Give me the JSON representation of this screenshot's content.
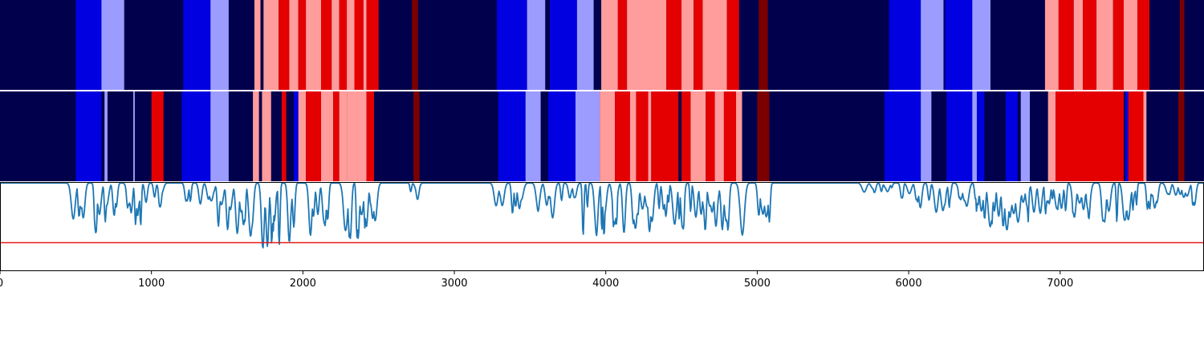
{
  "chart_data": {
    "type": "area",
    "title": "",
    "xlabel": "",
    "ylabel": "",
    "xlim": [
      0,
      7950
    ],
    "x_ticks": [
      {
        "value": 0,
        "label": "0"
      },
      {
        "value": 1000,
        "label": "1000"
      },
      {
        "value": 2000,
        "label": "2000"
      },
      {
        "value": 3000,
        "label": "3000"
      },
      {
        "value": 4000,
        "label": "4000"
      },
      {
        "value": 5000,
        "label": "5000"
      },
      {
        "value": 6000,
        "label": "6000"
      },
      {
        "value": 7000,
        "label": "7000"
      }
    ],
    "state_colors": {
      "bg": "#00004c",
      "blue": "#0000e0",
      "lightblue": "#9c9cff",
      "lightred": "#ff9c9c",
      "red": "#e40000",
      "darkred": "#7a0000"
    },
    "tracks": [
      {
        "segments": [
          [
            500,
            670,
            "blue"
          ],
          [
            670,
            820,
            "lightblue"
          ],
          [
            1210,
            1390,
            "blue"
          ],
          [
            1390,
            1510,
            "lightblue"
          ],
          [
            1680,
            1720,
            "lightred"
          ],
          [
            1740,
            1840,
            "lightred"
          ],
          [
            1840,
            1910,
            "red"
          ],
          [
            1910,
            1970,
            "lightred"
          ],
          [
            1970,
            2020,
            "red"
          ],
          [
            2020,
            2120,
            "lightred"
          ],
          [
            2120,
            2190,
            "red"
          ],
          [
            2190,
            2240,
            "lightred"
          ],
          [
            2240,
            2290,
            "red"
          ],
          [
            2290,
            2340,
            "lightred"
          ],
          [
            2340,
            2400,
            "red"
          ],
          [
            2400,
            2420,
            "lightred"
          ],
          [
            2420,
            2500,
            "red"
          ],
          [
            2720,
            2760,
            "darkred"
          ],
          [
            3280,
            3480,
            "blue"
          ],
          [
            3480,
            3600,
            "lightblue"
          ],
          [
            3630,
            3810,
            "blue"
          ],
          [
            3810,
            3920,
            "lightblue"
          ],
          [
            3970,
            4080,
            "lightred"
          ],
          [
            4080,
            4140,
            "red"
          ],
          [
            4140,
            4400,
            "lightred"
          ],
          [
            4400,
            4500,
            "red"
          ],
          [
            4500,
            4580,
            "lightred"
          ],
          [
            4580,
            4640,
            "red"
          ],
          [
            4640,
            4800,
            "lightred"
          ],
          [
            4800,
            4880,
            "red"
          ],
          [
            5010,
            5070,
            "darkred"
          ],
          [
            5870,
            6080,
            "blue"
          ],
          [
            6080,
            6230,
            "lightblue"
          ],
          [
            6240,
            6420,
            "blue"
          ],
          [
            6420,
            6540,
            "lightblue"
          ],
          [
            6900,
            6990,
            "lightred"
          ],
          [
            6990,
            7090,
            "red"
          ],
          [
            7090,
            7150,
            "lightred"
          ],
          [
            7150,
            7240,
            "red"
          ],
          [
            7240,
            7350,
            "lightred"
          ],
          [
            7350,
            7420,
            "red"
          ],
          [
            7420,
            7510,
            "lightred"
          ],
          [
            7510,
            7590,
            "red"
          ],
          [
            7790,
            7820,
            "darkred"
          ]
        ]
      },
      {
        "segments": [
          [
            500,
            670,
            "blue"
          ],
          [
            690,
            710,
            "lightblue"
          ],
          [
            880,
            890,
            "lightblue"
          ],
          [
            1000,
            1080,
            "red"
          ],
          [
            1200,
            1390,
            "blue"
          ],
          [
            1390,
            1510,
            "lightblue"
          ],
          [
            1670,
            1710,
            "lightred"
          ],
          [
            1730,
            1790,
            "lightred"
          ],
          [
            1860,
            1890,
            "red"
          ],
          [
            1940,
            1970,
            "blue"
          ],
          [
            1970,
            2020,
            "lightred"
          ],
          [
            2020,
            2120,
            "red"
          ],
          [
            2120,
            2200,
            "lightred"
          ],
          [
            2200,
            2240,
            "red"
          ],
          [
            2240,
            2290,
            "lightred"
          ],
          [
            2290,
            2420,
            "lightred"
          ],
          [
            2420,
            2470,
            "red"
          ],
          [
            2730,
            2770,
            "darkred"
          ],
          [
            3290,
            3470,
            "blue"
          ],
          [
            3470,
            3570,
            "lightblue"
          ],
          [
            3620,
            3800,
            "blue"
          ],
          [
            3800,
            3960,
            "lightblue"
          ],
          [
            3960,
            4060,
            "lightred"
          ],
          [
            4060,
            4160,
            "red"
          ],
          [
            4160,
            4200,
            "lightred"
          ],
          [
            4200,
            4280,
            "red"
          ],
          [
            4280,
            4300,
            "lightred"
          ],
          [
            4300,
            4480,
            "red"
          ],
          [
            4500,
            4560,
            "red"
          ],
          [
            4560,
            4660,
            "lightred"
          ],
          [
            4660,
            4720,
            "red"
          ],
          [
            4720,
            4780,
            "lightred"
          ],
          [
            4780,
            4860,
            "red"
          ],
          [
            4860,
            4900,
            "lightred"
          ],
          [
            5000,
            5080,
            "darkred"
          ],
          [
            5840,
            6080,
            "blue"
          ],
          [
            6080,
            6150,
            "lightblue"
          ],
          [
            6250,
            6420,
            "blue"
          ],
          [
            6420,
            6450,
            "lightblue"
          ],
          [
            6450,
            6500,
            "blue"
          ],
          [
            6640,
            6720,
            "blue"
          ],
          [
            6740,
            6800,
            "lightblue"
          ],
          [
            6920,
            6970,
            "lightred"
          ],
          [
            6970,
            7420,
            "red"
          ],
          [
            7430,
            7450,
            "blue"
          ],
          [
            7450,
            7550,
            "red"
          ],
          [
            7550,
            7570,
            "lightred"
          ],
          [
            7780,
            7820,
            "darkred"
          ]
        ]
      }
    ],
    "line_series": {
      "color": "#1f77b4",
      "ylim": [
        0,
        1
      ],
      "baseline": 0.99,
      "dips": [
        [
          470,
          550,
          0.5
        ],
        [
          600,
          720,
          0.6
        ],
        [
          720,
          870,
          0.4
        ],
        [
          870,
          970,
          0.6
        ],
        [
          1020,
          1100,
          0.3
        ],
        [
          1190,
          1260,
          0.3
        ],
        [
          1300,
          1420,
          0.3
        ],
        [
          1440,
          1700,
          0.6
        ],
        [
          1700,
          2000,
          0.75
        ],
        [
          2000,
          2200,
          0.6
        ],
        [
          2200,
          2480,
          0.65
        ],
        [
          2700,
          2760,
          0.2
        ],
        [
          3250,
          3330,
          0.3
        ],
        [
          3380,
          3480,
          0.4
        ],
        [
          3540,
          3650,
          0.45
        ],
        [
          3680,
          3800,
          0.25
        ],
        [
          3850,
          3960,
          0.6
        ],
        [
          3960,
          4200,
          0.6
        ],
        [
          4200,
          4350,
          0.7
        ],
        [
          4350,
          4500,
          0.6
        ],
        [
          4500,
          4700,
          0.55
        ],
        [
          4700,
          4920,
          0.6
        ],
        [
          4990,
          5090,
          0.45
        ],
        [
          5700,
          5900,
          0.15
        ],
        [
          5950,
          6080,
          0.3
        ],
        [
          6130,
          6300,
          0.35
        ],
        [
          6300,
          6500,
          0.35
        ],
        [
          6500,
          6650,
          0.6
        ],
        [
          6650,
          6800,
          0.45
        ],
        [
          6800,
          7000,
          0.35
        ],
        [
          7000,
          7100,
          0.45
        ],
        [
          7100,
          7350,
          0.45
        ],
        [
          7350,
          7460,
          0.45
        ],
        [
          7460,
          7550,
          0.35
        ],
        [
          7550,
          7700,
          0.4
        ],
        [
          7700,
          7900,
          0.35
        ]
      ]
    },
    "threshold": {
      "value": 0.32,
      "color": "#e41a1c"
    }
  }
}
